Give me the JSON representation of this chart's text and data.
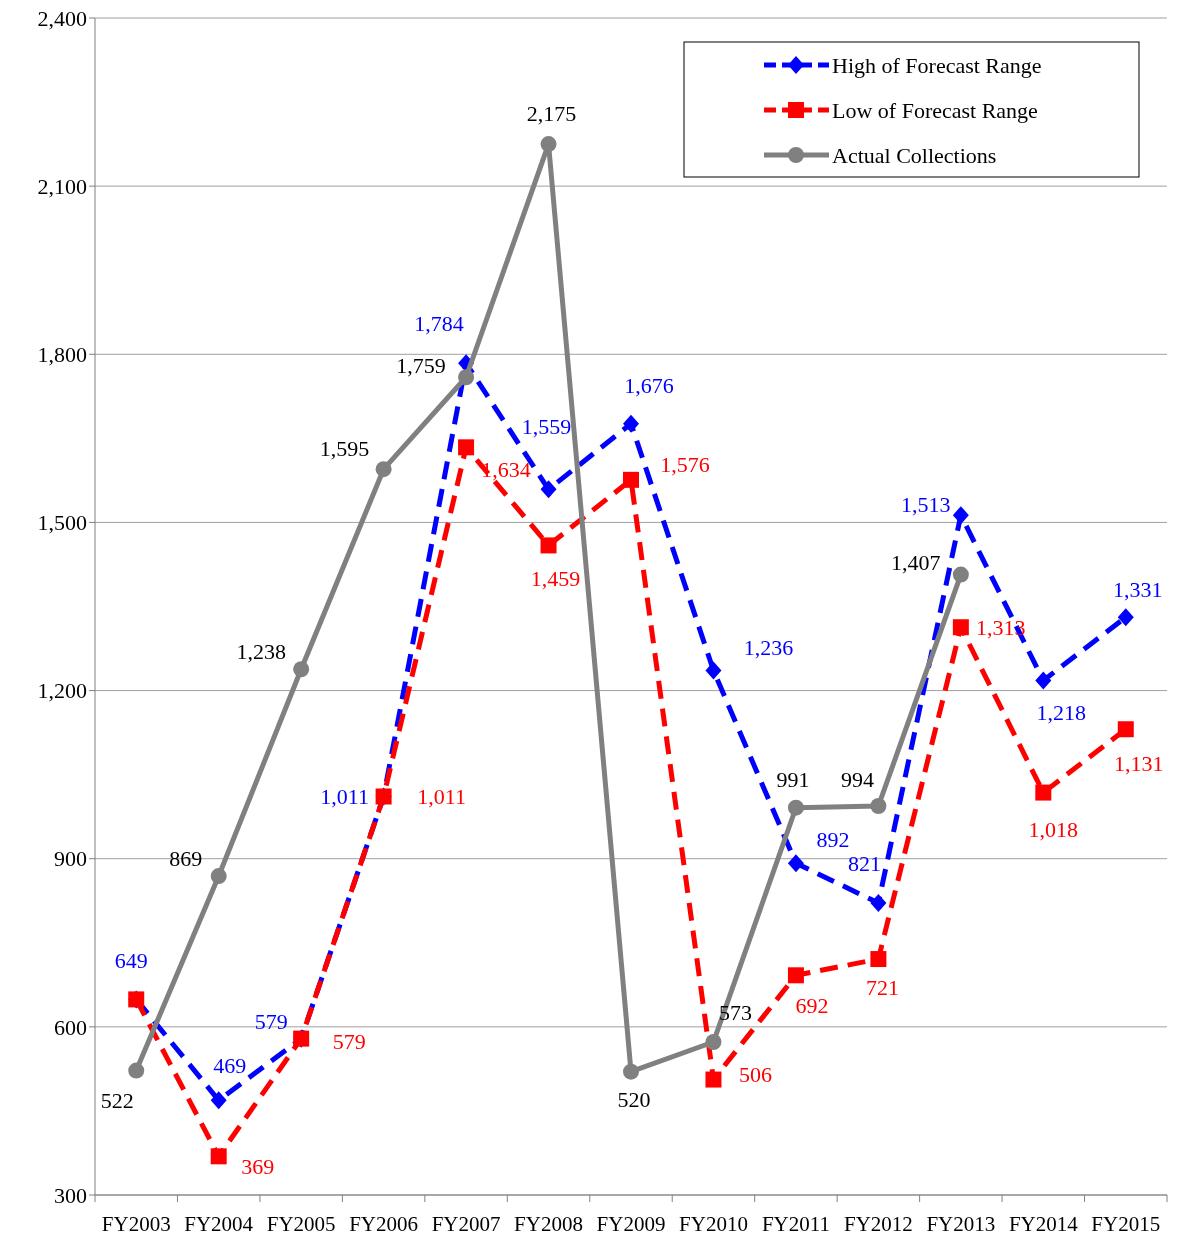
{
  "chart_data": {
    "type": "line",
    "categories": [
      "FY2003",
      "FY2004",
      "FY2005",
      "FY2006",
      "FY2007",
      "FY2008",
      "FY2009",
      "FY2010",
      "FY2011",
      "FY2012",
      "FY2013",
      "FY2014",
      "FY2015"
    ],
    "series": [
      {
        "name": "High of Forecast Range",
        "color": "#0000ff",
        "line_style": "dashed",
        "marker": "diamond",
        "values": [
          649,
          469,
          579,
          1011,
          1784,
          1559,
          1676,
          1236,
          892,
          821,
          1513,
          1218,
          1331
        ],
        "value_labels": [
          "649",
          "469",
          "579",
          "1,011",
          "1,784",
          "1,559",
          "1,676",
          "1,236",
          "892",
          "821",
          "1,513",
          "1,218",
          "1,331"
        ]
      },
      {
        "name": "Low of Forecast Range",
        "color": "#ff0000",
        "line_style": "dashed",
        "marker": "square",
        "values": [
          649,
          369,
          579,
          1011,
          1634,
          1459,
          1576,
          506,
          692,
          721,
          1313,
          1018,
          1131
        ],
        "value_labels": [
          null,
          "369",
          "579",
          "1,011",
          "1,634",
          "1,459",
          "1,576",
          "506",
          "692",
          "721",
          "1,313",
          "1,018",
          "1,131"
        ]
      },
      {
        "name": "Actual Collections",
        "color": "#808080",
        "line_style": "solid",
        "marker": "circle",
        "values": [
          522,
          869,
          1238,
          1595,
          1759,
          2175,
          520,
          573,
          991,
          994,
          1407,
          null,
          null
        ],
        "value_labels": [
          "522",
          "869",
          "1,238",
          "1,595",
          "1,759",
          "2,175",
          "520",
          "573",
          "991",
          "994",
          "1,407",
          null,
          null
        ]
      }
    ],
    "ylim": [
      300,
      2400
    ],
    "yticks": [
      {
        "value": 300,
        "label": "300"
      },
      {
        "value": 600,
        "label": "600"
      },
      {
        "value": 900,
        "label": "900"
      },
      {
        "value": 1200,
        "label": "1,200"
      },
      {
        "value": 1500,
        "label": "1,500"
      },
      {
        "value": 1800,
        "label": "1,800"
      },
      {
        "value": 2100,
        "label": "2,100"
      },
      {
        "value": 2400,
        "label": "2,400"
      }
    ],
    "grid": "y",
    "legend": "top right"
  }
}
